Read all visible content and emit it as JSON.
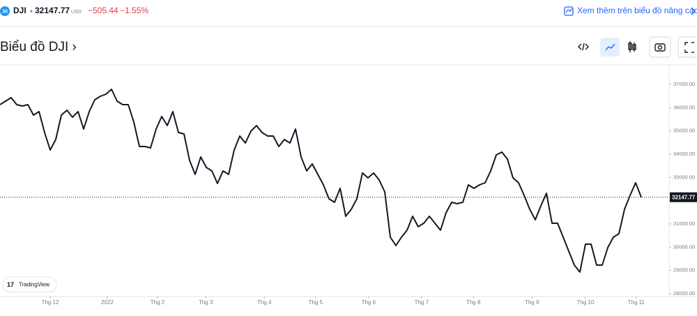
{
  "header": {
    "badge": "30",
    "symbol": "DJI",
    "price": "32147.77",
    "currency": "USD",
    "change": "−505.44",
    "change_pct": "−1.55%",
    "link": "Xem thêm trên biểu đồ nâng cao"
  },
  "toolbar": {
    "title": "Biểu đồ DJI ›"
  },
  "watermark": "TradingView",
  "chart_data": {
    "type": "line",
    "color": "#131722",
    "values": [
      36130,
      36280,
      36430,
      36130,
      36070,
      36130,
      35680,
      35830,
      34930,
      34180,
      34630,
      35680,
      35890,
      35590,
      35830,
      35080,
      35830,
      36340,
      36490,
      36580,
      36790,
      36280,
      36130,
      36130,
      35380,
      34330,
      34330,
      34270,
      35080,
      35620,
      35230,
      35830,
      34930,
      34870,
      33730,
      33130,
      33880,
      33430,
      33280,
      32740,
      33280,
      33130,
      34180,
      34780,
      34480,
      34990,
      35230,
      34930,
      34780,
      34780,
      34330,
      34630,
      34480,
      35080,
      33880,
      33280,
      33580,
      33130,
      32680,
      32080,
      31930,
      32530,
      31330,
      31630,
      32080,
      33190,
      32980,
      33190,
      32890,
      32380,
      30430,
      30070,
      30430,
      30730,
      31330,
      30880,
      31030,
      31330,
      31030,
      30730,
      31480,
      31930,
      31870,
      31930,
      32680,
      32530,
      32680,
      32770,
      33280,
      33970,
      34090,
      33790,
      32980,
      32770,
      32230,
      31630,
      31180,
      31780,
      32320,
      31030,
      31030,
      30430,
      29830,
      29230,
      28930,
      30130,
      30130,
      29230,
      29230,
      29980,
      30430,
      30580,
      31630,
      32230,
      32770,
      32147.77
    ],
    "ylim": [
      27880,
      37840
    ],
    "yticks": [
      {
        "value": 28000,
        "label": "28000.00"
      },
      {
        "value": 29000,
        "label": "29000.00"
      },
      {
        "value": 30000,
        "label": "30000.00"
      },
      {
        "value": 31000,
        "label": "31000.00"
      },
      {
        "value": 32000,
        "label": "32000.00"
      },
      {
        "value": 33000,
        "label": "33000.00"
      },
      {
        "value": 34000,
        "label": "34000.00"
      },
      {
        "value": 35000,
        "label": "35000.00"
      },
      {
        "value": 36000,
        "label": "36000.00"
      },
      {
        "value": 37000,
        "label": "37000.00"
      }
    ],
    "xticks": [
      {
        "value": 9,
        "label": "Thg 12"
      },
      {
        "value": 19.25,
        "label": "2022"
      },
      {
        "value": 28.25,
        "label": "Thg 2"
      },
      {
        "value": 36.9,
        "label": "Thg 3"
      },
      {
        "value": 47.4,
        "label": "Thg 4"
      },
      {
        "value": 56.6,
        "label": "Thg 5"
      },
      {
        "value": 66.1,
        "label": "Thg 6"
      },
      {
        "value": 75.6,
        "label": "Thg 7"
      },
      {
        "value": 84.9,
        "label": "Thg 8"
      },
      {
        "value": 95.4,
        "label": "Thg 9"
      },
      {
        "value": 105,
        "label": "Thg 10"
      },
      {
        "value": 114.1,
        "label": "Thg 11"
      }
    ],
    "last_value_line": true
  }
}
